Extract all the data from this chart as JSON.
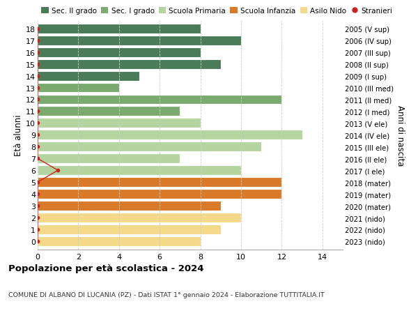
{
  "ages": [
    18,
    17,
    16,
    15,
    14,
    13,
    12,
    11,
    10,
    9,
    8,
    7,
    6,
    5,
    4,
    3,
    2,
    1,
    0
  ],
  "right_labels": [
    "2005 (V sup)",
    "2006 (IV sup)",
    "2007 (III sup)",
    "2008 (II sup)",
    "2009 (I sup)",
    "2010 (III med)",
    "2011 (II med)",
    "2012 (I med)",
    "2013 (V ele)",
    "2014 (IV ele)",
    "2015 (III ele)",
    "2016 (II ele)",
    "2017 (I ele)",
    "2018 (mater)",
    "2019 (mater)",
    "2020 (mater)",
    "2021 (nido)",
    "2022 (nido)",
    "2023 (nido)"
  ],
  "values": [
    8,
    10,
    8,
    9,
    5,
    4,
    12,
    7,
    8,
    13,
    11,
    7,
    10,
    12,
    12,
    9,
    10,
    9,
    8
  ],
  "stranieri": [
    0,
    0,
    0,
    0,
    0,
    0,
    0,
    0,
    0,
    0,
    0,
    0,
    1,
    0,
    0,
    0,
    0,
    0,
    0
  ],
  "bar_colors": [
    "#4a7c59",
    "#4a7c59",
    "#4a7c59",
    "#4a7c59",
    "#4a7c59",
    "#7aaa6d",
    "#7aaa6d",
    "#7aaa6d",
    "#b5d5a0",
    "#b5d5a0",
    "#b5d5a0",
    "#b5d5a0",
    "#b5d5a0",
    "#d97a2a",
    "#d97a2a",
    "#d97a2a",
    "#f5d98b",
    "#f5d98b",
    "#f5d98b"
  ],
  "legend_labels": [
    "Sec. II grado",
    "Sec. I grado",
    "Scuola Primaria",
    "Scuola Infanzia",
    "Asilo Nido",
    "Stranieri"
  ],
  "legend_colors": [
    "#4a7c59",
    "#7aaa6d",
    "#b5d5a0",
    "#d97a2a",
    "#f5d98b",
    "#cc2222"
  ],
  "title": "Popolazione per età scolastica - 2024",
  "subtitle": "COMUNE DI ALBANO DI LUCANIA (PZ) - Dati ISTAT 1° gennaio 2024 - Elaborazione TUTTITALIA.IT",
  "ylabel_left": "Età alunni",
  "ylabel_right": "Anni di nascita",
  "xlim": [
    0,
    15
  ],
  "xticks": [
    0,
    2,
    4,
    6,
    8,
    10,
    12,
    14
  ],
  "bg_color": "#ffffff",
  "grid_color": "#cccccc",
  "stranieri_color": "#cc2222"
}
